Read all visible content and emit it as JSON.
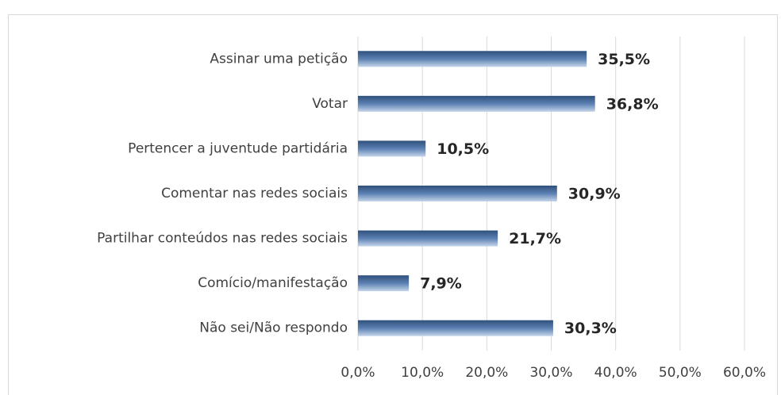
{
  "chart_data": {
    "type": "bar",
    "orientation": "horizontal",
    "categories": [
      "Assinar uma petição",
      "Votar",
      "Pertencer a juventude partidária",
      "Comentar nas redes sociais",
      "Partilhar conteúdos nas redes sociais",
      "Comício/manifestação",
      "Não sei/Não respondo"
    ],
    "values": [
      35.5,
      36.8,
      10.5,
      30.9,
      21.7,
      7.9,
      30.3
    ],
    "value_labels": [
      "35,5%",
      "36,8%",
      "10,5%",
      "30,9%",
      "21,7%",
      "7,9%",
      "30,3%"
    ],
    "color": "#5b80b2",
    "xlim": [
      0,
      60
    ],
    "xticks": [
      {
        "value": 0,
        "label": "0,0%"
      },
      {
        "value": 10,
        "label": "10,0%"
      },
      {
        "value": 20,
        "label": "20,0%"
      },
      {
        "value": 30,
        "label": "30,0%"
      },
      {
        "value": 40,
        "label": "40,0%"
      },
      {
        "value": 50,
        "label": "50,0%"
      },
      {
        "value": 60,
        "label": "60,0%"
      }
    ],
    "grid": true
  }
}
